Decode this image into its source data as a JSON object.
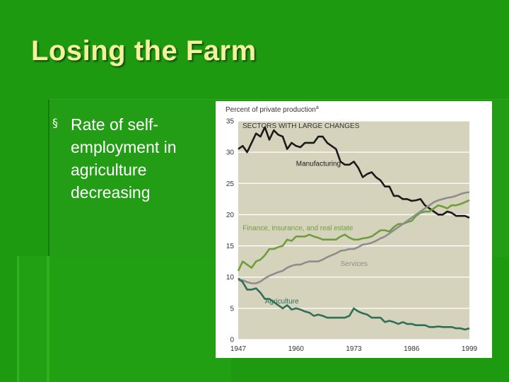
{
  "slide": {
    "title": "Losing the Farm",
    "bullet_text": "Rate of self-employment in agriculture decreasing",
    "bullet_icon": "square-bullet-icon",
    "colors": {
      "background": "#1e9a11",
      "title": "#f3f19c",
      "text": "#ffffff"
    }
  },
  "chart_data": {
    "type": "line",
    "ylabel": "Percent of private production",
    "ylabel_marker": "a",
    "header": "SECTORS WITH LARGE CHANGES",
    "ylim": [
      0,
      35
    ],
    "yticks": [
      0,
      5,
      10,
      15,
      20,
      25,
      30,
      35
    ],
    "xlim": [
      1947,
      1999
    ],
    "xticks": [
      1947,
      1960,
      1973,
      1986,
      1999
    ],
    "grid": true,
    "plot_background": "#d6d3bd",
    "series": [
      {
        "name": "Manufacturing",
        "color": "#1a1a1a",
        "x": [
          1947,
          1948,
          1949,
          1950,
          1951,
          1952,
          1953,
          1954,
          1955,
          1956,
          1957,
          1958,
          1959,
          1960,
          1961,
          1962,
          1963,
          1964,
          1965,
          1966,
          1967,
          1968,
          1969,
          1970,
          1971,
          1972,
          1973,
          1974,
          1975,
          1976,
          1977,
          1978,
          1979,
          1980,
          1981,
          1982,
          1983,
          1984,
          1985,
          1986,
          1987,
          1988,
          1989,
          1990,
          1991,
          1992,
          1993,
          1994,
          1995,
          1996,
          1997,
          1998,
          1999
        ],
        "values": [
          30.5,
          31.0,
          30.0,
          31.5,
          33.0,
          32.5,
          34.0,
          32.0,
          33.5,
          32.8,
          32.5,
          30.5,
          31.5,
          31.0,
          30.8,
          31.5,
          31.5,
          31.5,
          32.5,
          32.5,
          31.5,
          31.0,
          30.5,
          28.5,
          28.0,
          28.0,
          28.5,
          27.5,
          26.0,
          26.5,
          26.8,
          26.0,
          25.5,
          24.5,
          24.5,
          23.0,
          23.0,
          22.5,
          22.5,
          22.2,
          22.3,
          22.5,
          21.5,
          21.0,
          20.5,
          20.0,
          20.0,
          20.5,
          20.3,
          19.8,
          19.8,
          19.8,
          19.5
        ],
        "label_at": [
          1960,
          27.8
        ]
      },
      {
        "name": "Finance, insurance, and real estate",
        "color": "#6d9e3c",
        "x": [
          1947,
          1948,
          1949,
          1950,
          1951,
          1952,
          1953,
          1954,
          1955,
          1956,
          1957,
          1958,
          1959,
          1960,
          1961,
          1962,
          1963,
          1964,
          1965,
          1966,
          1967,
          1968,
          1969,
          1970,
          1971,
          1972,
          1973,
          1974,
          1975,
          1976,
          1977,
          1978,
          1979,
          1980,
          1981,
          1982,
          1983,
          1984,
          1985,
          1986,
          1987,
          1988,
          1989,
          1990,
          1991,
          1992,
          1993,
          1994,
          1995,
          1996,
          1997,
          1998,
          1999
        ],
        "values": [
          11.0,
          12.5,
          12.0,
          11.5,
          12.5,
          12.8,
          13.5,
          14.5,
          14.5,
          14.8,
          15.0,
          16.0,
          15.8,
          16.5,
          16.5,
          16.5,
          16.8,
          16.5,
          16.3,
          16.0,
          16.0,
          16.0,
          16.0,
          16.5,
          16.8,
          16.3,
          16.0,
          16.0,
          16.2,
          16.3,
          16.5,
          17.0,
          17.5,
          17.5,
          17.3,
          18.0,
          18.5,
          18.5,
          18.8,
          19.0,
          19.8,
          20.3,
          20.5,
          20.5,
          21.0,
          21.5,
          21.3,
          21.0,
          21.5,
          21.5,
          21.7,
          22.0,
          22.3
        ],
        "label_at": [
          1948,
          17.5
        ]
      },
      {
        "name": "Services",
        "color": "#8d8d8d",
        "x": [
          1947,
          1948,
          1949,
          1950,
          1951,
          1952,
          1953,
          1954,
          1955,
          1956,
          1957,
          1958,
          1959,
          1960,
          1961,
          1962,
          1963,
          1964,
          1965,
          1966,
          1967,
          1968,
          1969,
          1970,
          1971,
          1972,
          1973,
          1974,
          1975,
          1976,
          1977,
          1978,
          1979,
          1980,
          1981,
          1982,
          1983,
          1984,
          1985,
          1986,
          1987,
          1988,
          1989,
          1990,
          1991,
          1992,
          1993,
          1994,
          1995,
          1996,
          1997,
          1998,
          1999
        ],
        "values": [
          9.5,
          9.5,
          9.2,
          9.0,
          9.0,
          9.3,
          9.8,
          10.2,
          10.5,
          10.8,
          11.0,
          11.5,
          11.8,
          12.0,
          12.0,
          12.3,
          12.5,
          12.5,
          12.5,
          12.8,
          13.2,
          13.5,
          13.8,
          14.2,
          14.3,
          14.5,
          14.5,
          14.8,
          15.2,
          15.3,
          15.5,
          15.8,
          16.2,
          16.5,
          17.0,
          17.5,
          18.0,
          18.5,
          19.0,
          19.5,
          20.0,
          20.5,
          21.0,
          21.5,
          22.0,
          22.3,
          22.5,
          22.7,
          22.8,
          23.0,
          23.3,
          23.5,
          23.6
        ],
        "label_at": [
          1970,
          11.8
        ]
      },
      {
        "name": "Agriculture",
        "color": "#2f6e57",
        "x": [
          1947,
          1948,
          1949,
          1950,
          1951,
          1952,
          1953,
          1954,
          1955,
          1956,
          1957,
          1958,
          1959,
          1960,
          1961,
          1962,
          1963,
          1964,
          1965,
          1966,
          1967,
          1968,
          1969,
          1970,
          1971,
          1972,
          1973,
          1974,
          1975,
          1976,
          1977,
          1978,
          1979,
          1980,
          1981,
          1982,
          1983,
          1984,
          1985,
          1986,
          1987,
          1988,
          1989,
          1990,
          1991,
          1992,
          1993,
          1994,
          1995,
          1996,
          1997,
          1998,
          1999
        ],
        "values": [
          9.8,
          9.2,
          8.0,
          8.0,
          8.2,
          7.5,
          6.5,
          6.5,
          6.0,
          5.5,
          5.0,
          5.5,
          4.8,
          5.0,
          4.8,
          4.5,
          4.3,
          3.8,
          4.0,
          3.8,
          3.5,
          3.5,
          3.5,
          3.5,
          3.5,
          3.8,
          5.0,
          4.5,
          4.2,
          4.0,
          3.5,
          3.5,
          3.5,
          2.8,
          3.0,
          2.8,
          2.5,
          2.8,
          2.5,
          2.5,
          2.3,
          2.3,
          2.3,
          2.0,
          2.0,
          2.1,
          2.0,
          2.0,
          2.0,
          1.8,
          1.8,
          1.6,
          1.8
        ],
        "label_at": [
          1953,
          5.8
        ]
      }
    ]
  }
}
